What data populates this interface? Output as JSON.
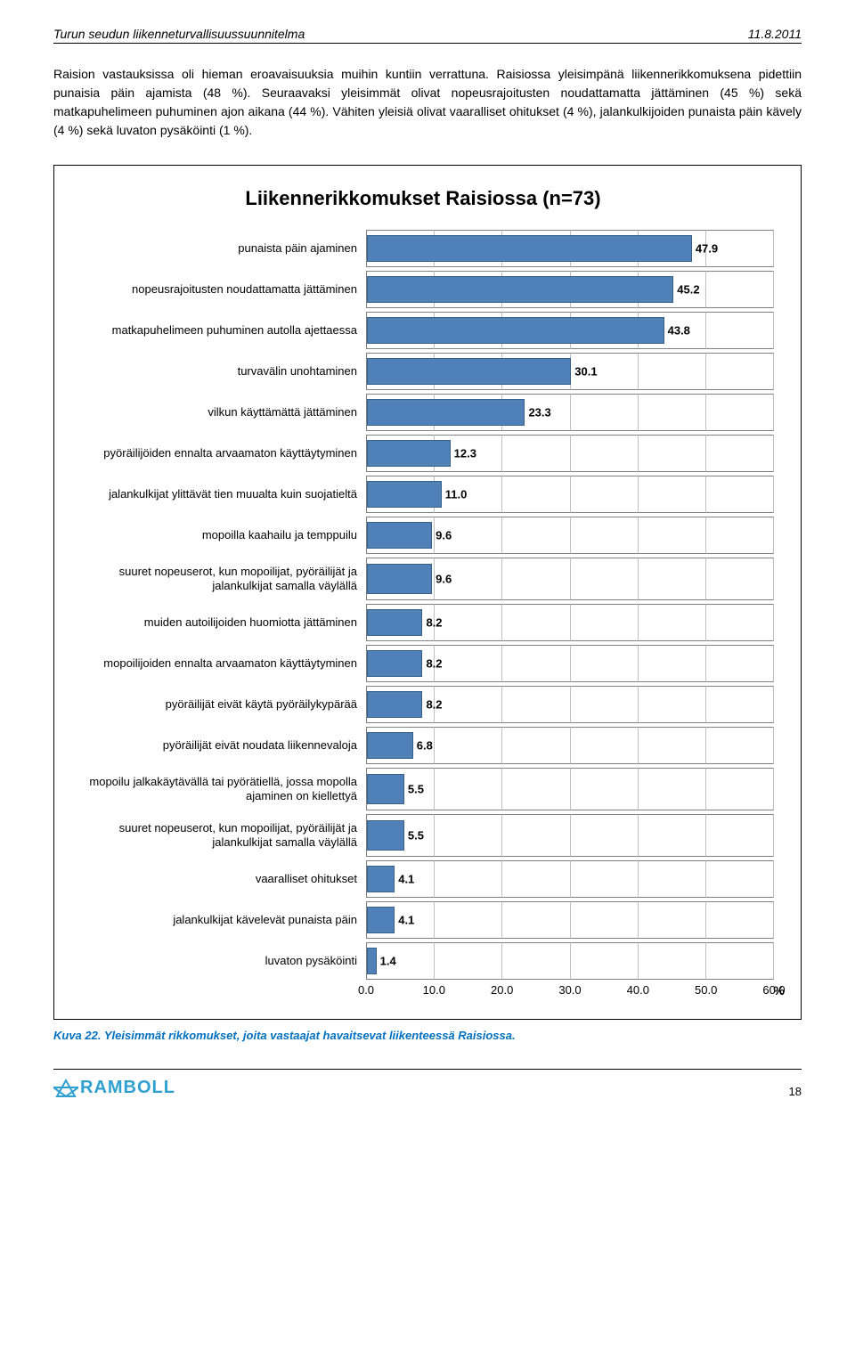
{
  "header": {
    "title": "Turun seudun liikenneturvallisuussuunnitelma",
    "date": "11.8.2011"
  },
  "paragraph": "Raision vastauksissa oli hieman eroavaisuuksia muihin kuntiin verrattuna. Raisiossa yleisimpänä liikennerikkomuksena pidettiin punaisia päin ajamista (48 %). Seuraavaksi yleisimmät olivat nopeusrajoitusten noudattamatta jättäminen (45 %) sekä matkapuhelimeen puhuminen ajon aikana (44 %). Vähiten yleisiä olivat vaaralliset ohitukset (4 %), jalankulkijoiden punaista päin kävely (4 %) sekä luvaton pysäköinti (1 %).",
  "chart": {
    "type": "bar",
    "title": "Liikennerikkomukset Raisiossa (n=73)",
    "xlim": [
      0,
      60
    ],
    "xtick_step": 10,
    "xticks": [
      "0.0",
      "10.0",
      "20.0",
      "30.0",
      "40.0",
      "50.0",
      "60.0"
    ],
    "axis_unit": "%",
    "bar_color": "#5080b8",
    "bar_border": "#385f85",
    "grid_color": "#c0c0c0",
    "label_fontsize": 13,
    "value_fontsize": 13,
    "title_fontsize": 22,
    "categories": [
      "punaista päin ajaminen",
      "nopeusrajoitusten noudattamatta jättäminen",
      "matkapuhelimeen puhuminen autolla ajettaessa",
      "turvavälin unohtaminen",
      "vilkun käyttämättä jättäminen",
      "pyöräilijöiden ennalta arvaamaton käyttäytyminen",
      "jalankulkijat ylittävät tien muualta kuin suojatieltä",
      "mopoilla kaahailu ja temppuilu",
      "suuret nopeuserot, kun mopoilijat, pyöräilijät ja jalankulkijat samalla väylällä",
      "muiden autoilijoiden huomiotta jättäminen",
      "mopoilijoiden ennalta arvaamaton käyttäytyminen",
      "pyöräilijät eivät käytä pyöräilykypärää",
      "pyöräilijät eivät noudata liikennevaloja",
      "mopoilu jalkakäytävällä tai pyörätiellä, jossa mopolla ajaminen on kiellettyä",
      "suuret nopeuserot, kun mopoilijat, pyöräilijät ja jalankulkijat samalla väylällä",
      "vaaralliset ohitukset",
      "jalankulkijat kävelevät punaista päin",
      "luvaton pysäköinti"
    ],
    "values": [
      47.9,
      45.2,
      43.8,
      30.1,
      23.3,
      12.3,
      11.0,
      9.6,
      9.6,
      8.2,
      8.2,
      8.2,
      6.8,
      5.5,
      5.5,
      4.1,
      4.1,
      1.4
    ],
    "value_labels": [
      "47.9",
      "45.2",
      "43.8",
      "30.1",
      "23.3",
      "12.3",
      "11.0",
      "9.6",
      "9.6",
      "8.2",
      "8.2",
      "8.2",
      "6.8",
      "5.5",
      "5.5",
      "4.1",
      "4.1",
      "1.4"
    ],
    "two_line": [
      false,
      false,
      false,
      false,
      false,
      false,
      false,
      false,
      true,
      false,
      false,
      false,
      false,
      true,
      true,
      false,
      false,
      false
    ]
  },
  "caption": "Kuva 22. Yleisimmät rikkomukset, joita vastaajat havaitsevat liikenteessä Raisiossa.",
  "footer": {
    "logo_text": "RAMBOLL",
    "page": "18"
  }
}
